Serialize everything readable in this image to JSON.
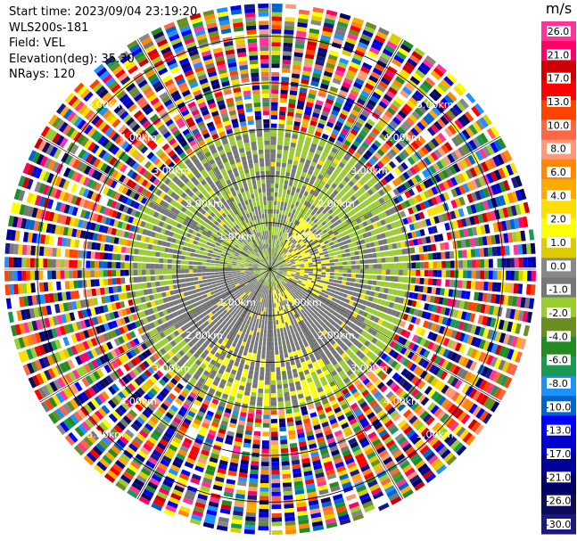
{
  "info": {
    "start_time": "Start time: 2023/09/04 23:19:20",
    "instrument": "WLS200s-181",
    "field": "Field: VEL",
    "elevation": "Elevation(deg): 35.30",
    "nrays": "NRays: 120"
  },
  "chart_data": {
    "type": "heatmap",
    "subtype": "polar-ppi",
    "field": "VEL",
    "instrument": "WLS200s-181",
    "start_time": "2023/09/04 23:19:20",
    "elevation_deg": 35.3,
    "n_rays": 120,
    "range_rings_km": [
      1.0,
      2.0,
      3.0,
      4.0,
      5.0
    ],
    "range_ring_labels": [
      "1.00km",
      "2.00km",
      "3.00km",
      "4.00km",
      "5.00km"
    ],
    "max_range_km": 5.7,
    "colorbar": {
      "title": "m/s",
      "ticks": [
        "26.0",
        "21.0",
        "17.0",
        "13.0",
        "10.0",
        "8.0",
        "6.0",
        "4.0",
        "2.0",
        "1.0",
        "0.0",
        "-1.0",
        "-2.0",
        "-4.0",
        "-6.0",
        "-8.0",
        "-10.0",
        "-13.0",
        "-17.0",
        "-21.0",
        "-26.0",
        "-30.0"
      ],
      "colors": [
        "#ff3399",
        "#ff0066",
        "#cc0000",
        "#ff0000",
        "#ff4400",
        "#ff6644",
        "#ff9977",
        "#ff8800",
        "#ffaa00",
        "#ffdd00",
        "#ffff00",
        "#ddcc00",
        "#888888",
        "#777777",
        "#9acd32",
        "#6b8e23",
        "#228b22",
        "#1a9950",
        "#1e90ff",
        "#0066cc",
        "#0000ff",
        "#0000cc",
        "#000099",
        "#000066",
        "#0b0b5a",
        "#1a1a80"
      ]
    },
    "zones": [
      {
        "range_km": [
          0.0,
          1.5
        ],
        "description": "near field: gray and yellow-green, yellow patches east/northeast",
        "values_mps": [
          -1.0,
          0.0,
          1.0,
          2.0
        ]
      },
      {
        "range_km": [
          1.5,
          3.0
        ],
        "description": "mid field: mostly gray and yellow-green",
        "values_mps": [
          -2.0,
          -1.0,
          0.0
        ]
      },
      {
        "range_km": [
          3.0,
          5.7
        ],
        "description": "far field: noise, all colors",
        "values_mps": [
          -30.0,
          26.0
        ]
      }
    ]
  }
}
